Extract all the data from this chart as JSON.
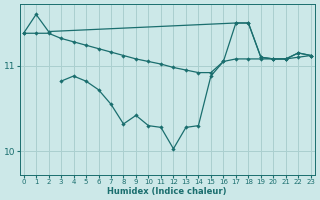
{
  "xlabel": "Humidex (Indice chaleur)",
  "background_color": "#cce8e8",
  "grid_color": "#aacfcf",
  "line_color": "#1a6e6e",
  "xlim": [
    -0.3,
    23.3
  ],
  "ylim": [
    9.72,
    11.72
  ],
  "yticks": [
    10,
    11
  ],
  "xticks": [
    0,
    1,
    2,
    3,
    4,
    5,
    6,
    7,
    8,
    9,
    10,
    11,
    12,
    13,
    14,
    15,
    16,
    17,
    18,
    19,
    20,
    21,
    22,
    23
  ],
  "line_jagged_x": [
    3,
    4,
    5,
    6,
    7,
    8,
    9,
    10,
    11,
    12,
    13,
    14,
    15,
    16,
    17,
    18,
    19,
    20,
    21,
    22,
    23
  ],
  "line_jagged_y": [
    10.82,
    10.88,
    10.82,
    10.72,
    10.55,
    10.32,
    10.42,
    10.3,
    10.28,
    10.03,
    10.28,
    10.3,
    10.88,
    11.05,
    11.5,
    11.5,
    11.1,
    11.08,
    11.08,
    11.15,
    11.12
  ],
  "line_diagonal_x": [
    0,
    1,
    2,
    3,
    4,
    5,
    6,
    7,
    8,
    9,
    10,
    11,
    12,
    13,
    14,
    15,
    16,
    17,
    18,
    19,
    20,
    21,
    22,
    23
  ],
  "line_diagonal_y": [
    11.38,
    11.38,
    11.38,
    11.32,
    11.28,
    11.24,
    11.2,
    11.16,
    11.12,
    11.08,
    11.05,
    11.02,
    10.98,
    10.95,
    10.92,
    10.92,
    11.05,
    11.08,
    11.08,
    11.08,
    11.08,
    11.08,
    11.1,
    11.12
  ],
  "line_upper_x": [
    0,
    1,
    2,
    17,
    18,
    19,
    20,
    21,
    22,
    23
  ],
  "line_upper_y": [
    11.38,
    11.6,
    11.4,
    11.5,
    11.5,
    11.1,
    11.08,
    11.08,
    11.15,
    11.12
  ]
}
